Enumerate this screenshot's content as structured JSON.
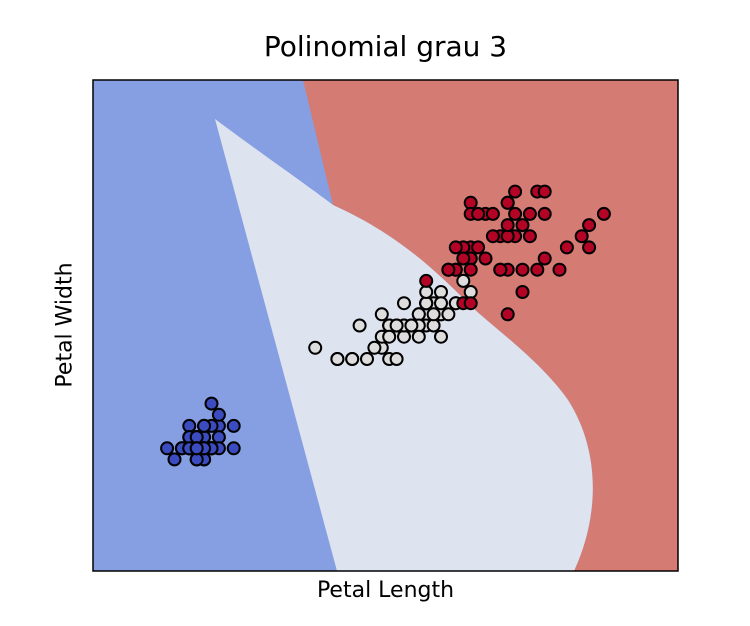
{
  "chart_data": {
    "type": "scatter",
    "title": "Polinomial grau 3",
    "xlabel": "Petal Length",
    "ylabel": "Petal Width",
    "xticks": "hidden",
    "yticks": "hidden",
    "xlim": [
      0.0,
      7.9
    ],
    "ylim": [
      -0.9,
      3.5
    ],
    "grid": false,
    "background": "decision regions of a 3-class polynomial (degree 3) classifier",
    "regions": [
      {
        "class": 0,
        "color": "#869fe2"
      },
      {
        "class": 1,
        "color": "#dee3f0"
      },
      {
        "class": 2,
        "color": "#d47b73"
      }
    ],
    "series": [
      {
        "class": 0,
        "color": "#3b4cc0",
        "points": [
          [
            1.4,
            0.2
          ],
          [
            1.4,
            0.2
          ],
          [
            1.3,
            0.2
          ],
          [
            1.5,
            0.2
          ],
          [
            1.4,
            0.2
          ],
          [
            1.7,
            0.4
          ],
          [
            1.4,
            0.3
          ],
          [
            1.5,
            0.2
          ],
          [
            1.4,
            0.2
          ],
          [
            1.5,
            0.1
          ],
          [
            1.5,
            0.2
          ],
          [
            1.6,
            0.2
          ],
          [
            1.4,
            0.1
          ],
          [
            1.1,
            0.1
          ],
          [
            1.2,
            0.2
          ],
          [
            1.5,
            0.4
          ],
          [
            1.3,
            0.4
          ],
          [
            1.4,
            0.3
          ],
          [
            1.7,
            0.3
          ],
          [
            1.5,
            0.3
          ],
          [
            1.7,
            0.2
          ],
          [
            1.5,
            0.4
          ],
          [
            1.0,
            0.2
          ],
          [
            1.7,
            0.5
          ],
          [
            1.9,
            0.2
          ],
          [
            1.6,
            0.2
          ],
          [
            1.6,
            0.4
          ],
          [
            1.5,
            0.2
          ],
          [
            1.4,
            0.2
          ],
          [
            1.6,
            0.2
          ],
          [
            1.6,
            0.2
          ],
          [
            1.5,
            0.4
          ],
          [
            1.5,
            0.1
          ],
          [
            1.4,
            0.2
          ],
          [
            1.5,
            0.2
          ],
          [
            1.2,
            0.2
          ],
          [
            1.3,
            0.2
          ],
          [
            1.4,
            0.1
          ],
          [
            1.3,
            0.2
          ],
          [
            1.5,
            0.2
          ],
          [
            1.3,
            0.3
          ],
          [
            1.3,
            0.3
          ],
          [
            1.3,
            0.2
          ],
          [
            1.6,
            0.6
          ],
          [
            1.9,
            0.4
          ],
          [
            1.4,
            0.3
          ],
          [
            1.6,
            0.2
          ],
          [
            1.4,
            0.2
          ],
          [
            1.5,
            0.2
          ],
          [
            1.4,
            0.2
          ]
        ]
      },
      {
        "class": 1,
        "color": "#dddddd",
        "points": [
          [
            4.7,
            1.4
          ],
          [
            4.5,
            1.5
          ],
          [
            4.9,
            1.5
          ],
          [
            4.0,
            1.3
          ],
          [
            4.6,
            1.5
          ],
          [
            4.5,
            1.3
          ],
          [
            4.7,
            1.6
          ],
          [
            3.3,
            1.0
          ],
          [
            4.6,
            1.3
          ],
          [
            3.9,
            1.4
          ],
          [
            3.5,
            1.0
          ],
          [
            4.2,
            1.5
          ],
          [
            4.0,
            1.0
          ],
          [
            4.7,
            1.4
          ],
          [
            3.6,
            1.3
          ],
          [
            4.4,
            1.4
          ],
          [
            4.5,
            1.5
          ],
          [
            4.1,
            1.0
          ],
          [
            4.5,
            1.5
          ],
          [
            3.9,
            1.1
          ],
          [
            4.8,
            1.8
          ],
          [
            4.0,
            1.3
          ],
          [
            4.9,
            1.5
          ],
          [
            4.7,
            1.2
          ],
          [
            4.3,
            1.3
          ],
          [
            4.4,
            1.4
          ],
          [
            4.8,
            1.4
          ],
          [
            5.0,
            1.7
          ],
          [
            4.5,
            1.5
          ],
          [
            3.5,
            1.0
          ],
          [
            3.8,
            1.1
          ],
          [
            3.7,
            1.0
          ],
          [
            3.9,
            1.2
          ],
          [
            5.1,
            1.6
          ],
          [
            4.5,
            1.5
          ],
          [
            4.5,
            1.6
          ],
          [
            4.7,
            1.5
          ],
          [
            4.4,
            1.3
          ],
          [
            4.1,
            1.3
          ],
          [
            4.0,
            1.3
          ],
          [
            4.4,
            1.2
          ],
          [
            4.6,
            1.4
          ],
          [
            4.0,
            1.2
          ],
          [
            3.3,
            1.0
          ],
          [
            4.2,
            1.3
          ],
          [
            4.2,
            1.2
          ],
          [
            4.2,
            1.3
          ],
          [
            4.3,
            1.3
          ],
          [
            3.0,
            1.1
          ],
          [
            4.1,
            1.3
          ]
        ]
      },
      {
        "class": 2,
        "color": "#b40426",
        "points": [
          [
            6.0,
            2.5
          ],
          [
            5.1,
            1.9
          ],
          [
            5.9,
            2.1
          ],
          [
            5.6,
            1.8
          ],
          [
            5.8,
            2.2
          ],
          [
            6.6,
            2.1
          ],
          [
            4.5,
            1.7
          ],
          [
            6.3,
            1.8
          ],
          [
            5.8,
            1.8
          ],
          [
            6.1,
            2.5
          ],
          [
            5.1,
            2.0
          ],
          [
            5.3,
            1.9
          ],
          [
            5.5,
            2.1
          ],
          [
            5.0,
            2.0
          ],
          [
            5.1,
            2.4
          ],
          [
            5.3,
            2.3
          ],
          [
            5.5,
            1.8
          ],
          [
            6.7,
            2.2
          ],
          [
            6.9,
            2.3
          ],
          [
            5.0,
            1.5
          ],
          [
            5.7,
            2.3
          ],
          [
            4.9,
            2.0
          ],
          [
            6.7,
            2.0
          ],
          [
            4.9,
            1.8
          ],
          [
            5.7,
            2.1
          ],
          [
            6.0,
            1.8
          ],
          [
            4.8,
            1.8
          ],
          [
            4.9,
            1.8
          ],
          [
            5.6,
            2.1
          ],
          [
            5.8,
            1.6
          ],
          [
            6.1,
            1.9
          ],
          [
            6.4,
            2.0
          ],
          [
            5.6,
            2.2
          ],
          [
            5.1,
            1.5
          ],
          [
            5.6,
            1.4
          ],
          [
            6.1,
            2.3
          ],
          [
            5.6,
            2.4
          ],
          [
            5.5,
            1.8
          ],
          [
            4.8,
            1.8
          ],
          [
            5.4,
            2.1
          ],
          [
            5.6,
            2.4
          ],
          [
            5.1,
            2.3
          ],
          [
            5.1,
            1.9
          ],
          [
            5.9,
            2.3
          ],
          [
            5.7,
            2.5
          ],
          [
            5.2,
            2.3
          ],
          [
            5.0,
            1.9
          ],
          [
            5.2,
            2.0
          ],
          [
            5.4,
            2.3
          ],
          [
            5.1,
            1.8
          ]
        ]
      }
    ]
  }
}
